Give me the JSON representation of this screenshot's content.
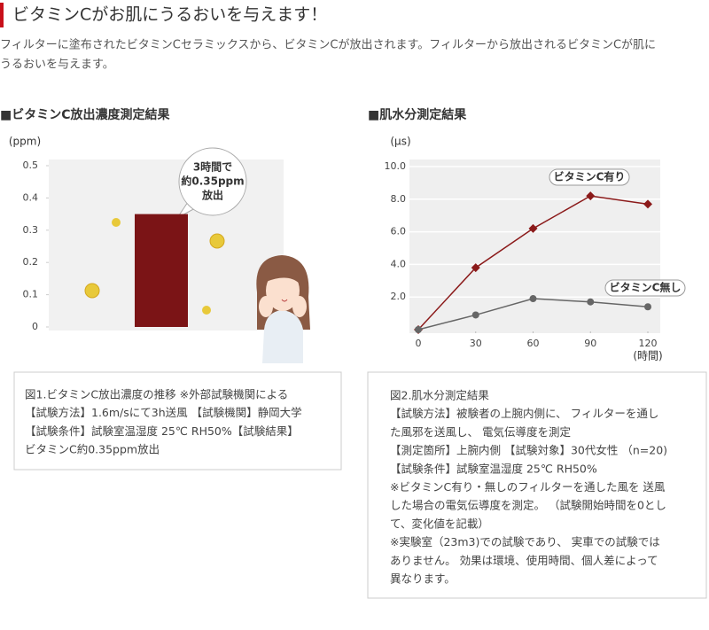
{
  "header": {
    "title": "ビタミンCがお肌にうるおいを与えます！",
    "intro": [
      "フィルターに塗布されたビタミンCセラミックスから、ビタミンCが放出されます。フィルターから放出されるビタミンCが肌に",
      "うるおいを与えます。"
    ]
  },
  "chart_data": [
    {
      "type": "bar",
      "title": "■ビタミンC放出濃度測定結果",
      "y_label": "(ppm)",
      "categories": [
        null
      ],
      "values": [
        0.35
      ],
      "color": "#7b1416",
      "ylim": [
        0,
        0.5
      ],
      "yticks": [
        0,
        0.1,
        0.2,
        0.3,
        0.4,
        0.5
      ],
      "annotation": [
        "3時間で",
        "約0.35ppm",
        "放出"
      ],
      "caption": [
        "図1.ビタミンC放出濃度の推移 ※外部試験機関による",
        "【試験方法】1.6m/sにて3h送風 【試験機関】静岡大学",
        "【試験条件】試験室温湿度 25℃ RH50%【試験結果】",
        "ビタミンC約0.35ppm放出"
      ]
    },
    {
      "type": "line",
      "title": "■肌水分測定結果",
      "y_label": "(μs)",
      "x_label": "(時間)",
      "x": [
        0,
        30,
        60,
        90,
        120
      ],
      "series": [
        {
          "name": "ビタミンC有り",
          "color": "#8b1a1a",
          "values": [
            0,
            3.8,
            6.2,
            8.2,
            7.7
          ]
        },
        {
          "name": "ビタミンC無し",
          "color": "#666666",
          "values": [
            0,
            0.9,
            1.9,
            1.7,
            1.4
          ]
        }
      ],
      "xlim": [
        0,
        120
      ],
      "xticks": [
        0,
        30,
        60,
        90,
        120
      ],
      "ylim": [
        0,
        10
      ],
      "yticks": [
        {
          "value": 2,
          "label": "2.0"
        },
        {
          "value": 4,
          "label": "4.0"
        },
        {
          "value": 6,
          "label": "6.0"
        },
        {
          "value": 8,
          "label": "8.0"
        },
        {
          "value": 10,
          "label": "10.0"
        }
      ],
      "grid": true,
      "caption": [
        "図2.肌水分測定結果",
        "【試験方法】被験者の上腕内側に、 フィルターを通し",
        "た風邪を送風し、 電気伝導度を測定",
        "【測定箇所】上腕内側 【試験対象】30代女性 （n=20)",
        "【試験条件】試験室温湿度 25℃ RH50%",
        "※ビタミンC有り・無しのフィルターを通した風を 送風",
        "した場合の電気伝導度を測定。 （試験開始時間を0とし",
        "て、変化値を記載）",
        "※実験室（23m3)での試験であり、 実車での試験では",
        "ありません。 効果は環境、使用時間、個人差によって",
        "異なります。"
      ]
    }
  ]
}
